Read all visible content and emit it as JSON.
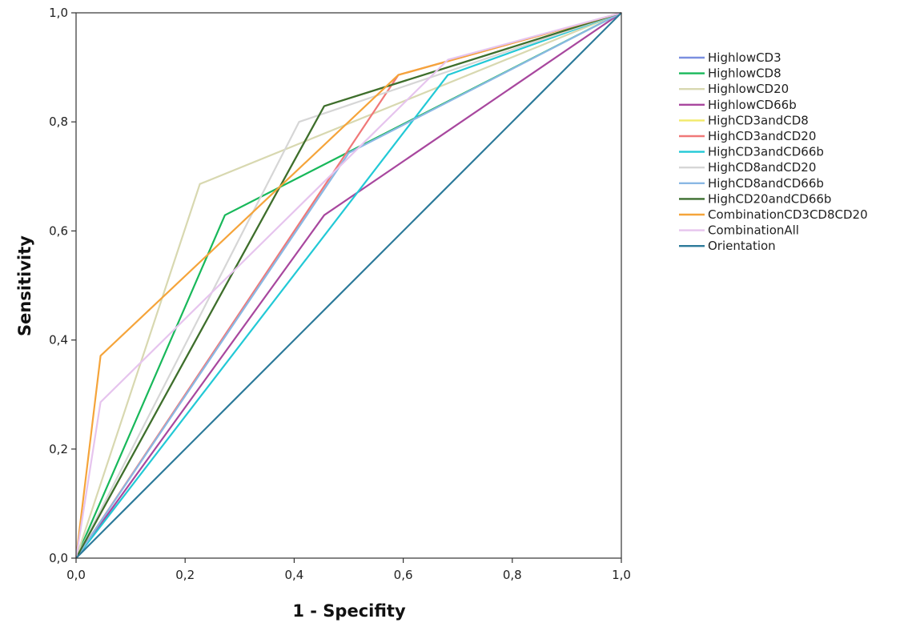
{
  "chart_data": {
    "type": "line",
    "title": "",
    "xlabel": "1 - Specifity",
    "ylabel": "Sensitivity",
    "xlim": [
      0,
      1
    ],
    "ylim": [
      0,
      1
    ],
    "xticks": [
      "0,0",
      "0,2",
      "0,4",
      "0,6",
      "0,8",
      "1,0"
    ],
    "yticks": [
      "0,0",
      "0,2",
      "0,4",
      "0,6",
      "0,8",
      "1,0"
    ],
    "grid": false,
    "legend_position": "right",
    "series": [
      {
        "name": "HighlowCD3",
        "color": "#7b8fe0",
        "points": [
          [
            0,
            0
          ],
          [
            0.455,
            0.829
          ],
          [
            1,
            1
          ]
        ]
      },
      {
        "name": "HighlowCD8",
        "color": "#18b85a",
        "points": [
          [
            0,
            0
          ],
          [
            0.273,
            0.629
          ],
          [
            1,
            1
          ]
        ]
      },
      {
        "name": "HighlowCD20",
        "color": "#d8d8b0",
        "points": [
          [
            0,
            0
          ],
          [
            0.227,
            0.686
          ],
          [
            1,
            1
          ]
        ]
      },
      {
        "name": "HighlowCD66b",
        "color": "#a8479e",
        "points": [
          [
            0,
            0
          ],
          [
            0.455,
            0.629
          ],
          [
            1,
            1
          ]
        ]
      },
      {
        "name": "HighCD3andCD8",
        "color": "#f2ea6a",
        "points": [
          [
            0,
            0
          ],
          [
            0.455,
            0.829
          ],
          [
            1,
            1
          ]
        ]
      },
      {
        "name": "HighCD3andCD20",
        "color": "#f07878",
        "points": [
          [
            0,
            0
          ],
          [
            0.591,
            0.886
          ],
          [
            1,
            1
          ]
        ]
      },
      {
        "name": "HighCD3andCD66b",
        "color": "#22c9d6",
        "points": [
          [
            0,
            0
          ],
          [
            0.682,
            0.886
          ],
          [
            1,
            1
          ]
        ]
      },
      {
        "name": "HighCD8andCD20",
        "color": "#d6d6d6",
        "points": [
          [
            0,
            0
          ],
          [
            0.409,
            0.8
          ],
          [
            1,
            1
          ]
        ]
      },
      {
        "name": "HighCD8andCD66b",
        "color": "#8ab8e4",
        "points": [
          [
            0,
            0
          ],
          [
            0.5,
            0.743
          ],
          [
            1,
            1
          ]
        ]
      },
      {
        "name": "HighCD20andCD66b",
        "color": "#3c6e2e",
        "points": [
          [
            0,
            0
          ],
          [
            0.455,
            0.829
          ],
          [
            1,
            1
          ]
        ]
      },
      {
        "name": "CombinationCD3CD8CD20",
        "color": "#f5a43a",
        "points": [
          [
            0,
            0
          ],
          [
            0.045,
            0.371
          ],
          [
            0.591,
            0.886
          ],
          [
            1,
            1
          ]
        ]
      },
      {
        "name": "CombinationAll",
        "color": "#e6c4ee",
        "points": [
          [
            0,
            0
          ],
          [
            0.045,
            0.286
          ],
          [
            0.682,
            0.914
          ],
          [
            1,
            1
          ]
        ]
      },
      {
        "name": "Orientation",
        "color": "#2c7a9a",
        "points": [
          [
            0,
            0
          ],
          [
            1,
            1
          ]
        ]
      }
    ]
  }
}
